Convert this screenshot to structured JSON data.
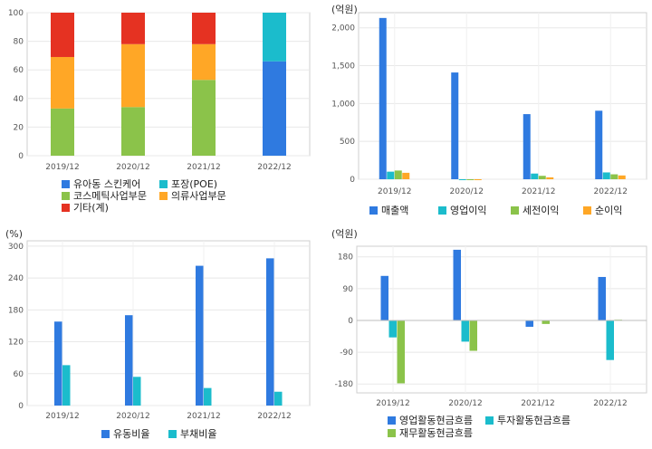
{
  "chart_data": [
    {
      "type": "bar",
      "stacked": true,
      "categories": [
        "2019/12",
        "2020/12",
        "2021/12",
        "2022/12"
      ],
      "ylim": [
        0,
        100
      ],
      "yticks": [
        0,
        20,
        40,
        60,
        80,
        100
      ],
      "unit_label": "",
      "series": [
        {
          "name": "유아동 스킨케어",
          "color": "#2f7ae0",
          "values": [
            0,
            0,
            0,
            66
          ]
        },
        {
          "name": "포장(POE)",
          "color": "#1bbccc",
          "values": [
            0,
            0,
            0,
            34
          ]
        },
        {
          "name": "코스메틱사업부문",
          "color": "#8bc34a",
          "values": [
            33,
            34,
            53,
            0
          ]
        },
        {
          "name": "의류사업부문",
          "color": "#ffa726",
          "values": [
            36,
            44,
            25,
            0
          ]
        },
        {
          "name": "기타(계)",
          "color": "#e53222",
          "values": [
            31,
            22,
            22,
            0
          ]
        }
      ],
      "legend_layout": [
        [
          0,
          1
        ],
        [
          2,
          3
        ],
        [
          4
        ]
      ]
    },
    {
      "type": "bar",
      "categories": [
        "2019/12",
        "2020/12",
        "2021/12",
        "2022/12"
      ],
      "ylim": [
        0,
        2200
      ],
      "yticks": [
        0,
        500,
        1000,
        1500,
        2000
      ],
      "ytick_labels": [
        "0",
        "500",
        "1,000",
        "1,500",
        "2,000"
      ],
      "unit_label": "(억원)",
      "series": [
        {
          "name": "매출액",
          "color": "#2f7ae0",
          "values": [
            2130,
            1410,
            860,
            905
          ]
        },
        {
          "name": "영업이익",
          "color": "#1bbccc",
          "values": [
            100,
            -3,
            75,
            90
          ]
        },
        {
          "name": "세전이익",
          "color": "#8bc34a",
          "values": [
            115,
            -5,
            45,
            65
          ]
        },
        {
          "name": "순이익",
          "color": "#ffa726",
          "values": [
            85,
            -8,
            25,
            50
          ]
        }
      ],
      "legend_layout": [
        [
          0,
          1,
          2,
          3
        ]
      ]
    },
    {
      "type": "bar",
      "categories": [
        "2019/12",
        "2020/12",
        "2021/12",
        "2022/12"
      ],
      "ylim": [
        0,
        310
      ],
      "yticks": [
        0,
        60,
        120,
        180,
        240,
        300
      ],
      "unit_label": "(%)",
      "series": [
        {
          "name": "유동비율",
          "color": "#2f7ae0",
          "values": [
            158,
            170,
            263,
            277
          ]
        },
        {
          "name": "부채비율",
          "color": "#1bbccc",
          "values": [
            76,
            54,
            33,
            26
          ]
        }
      ],
      "legend_layout": [
        [
          0,
          1
        ]
      ]
    },
    {
      "type": "bar",
      "categories": [
        "2019/12",
        "2020/12",
        "2021/12",
        "2022/12"
      ],
      "ylim": [
        -205,
        210
      ],
      "yticks": [
        -180,
        -90,
        0,
        90,
        180
      ],
      "unit_label": "(억원)",
      "series": [
        {
          "name": "영업활동현금흐름",
          "color": "#2f7ae0",
          "values": [
            126,
            200,
            -18,
            123
          ]
        },
        {
          "name": "투자활동현금흐름",
          "color": "#1bbccc",
          "values": [
            -48,
            -60,
            0,
            -112
          ]
        },
        {
          "name": "재무활동현금흐름",
          "color": "#8bc34a",
          "values": [
            -178,
            -86,
            -10,
            2
          ]
        }
      ],
      "legend_layout": [
        [
          0,
          1
        ],
        [
          2
        ]
      ]
    }
  ]
}
